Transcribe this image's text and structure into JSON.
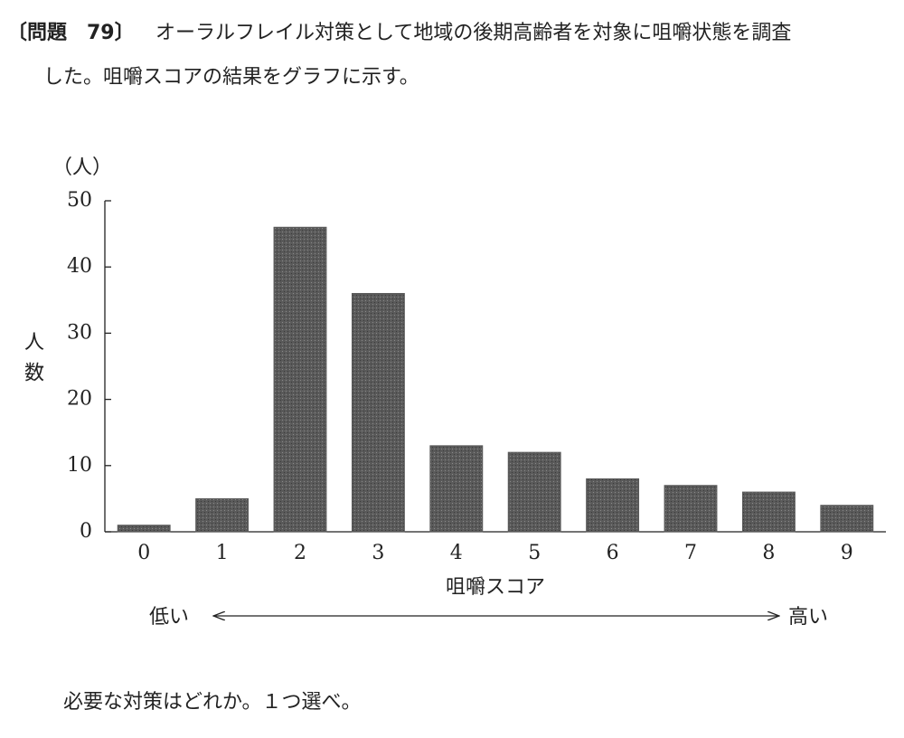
{
  "question": {
    "heading": "〔問題　79〕",
    "stem": [
      "オーラルフレイル対策として地域の後期高齢者を対象に咀嚼状態を調査",
      "した。咀嚼スコアの結果をグラフに示す。"
    ],
    "prompt": "必要な対策はどれか。１つ選べ。"
  },
  "chart_data": {
    "type": "bar",
    "y_unit": "（人）",
    "y_label": "人数",
    "x_label": "咀嚼スコア",
    "low_label": "低い",
    "high_label": "高い",
    "categories": [
      "0",
      "1",
      "2",
      "3",
      "4",
      "5",
      "6",
      "7",
      "8",
      "9"
    ],
    "values": [
      1,
      5,
      46,
      36,
      13,
      12,
      8,
      7,
      6,
      4
    ],
    "color": "#5a5a5a",
    "ylim": [
      0,
      50
    ],
    "yticks": [
      0,
      10,
      20,
      30,
      40,
      50
    ],
    "grid": false
  }
}
